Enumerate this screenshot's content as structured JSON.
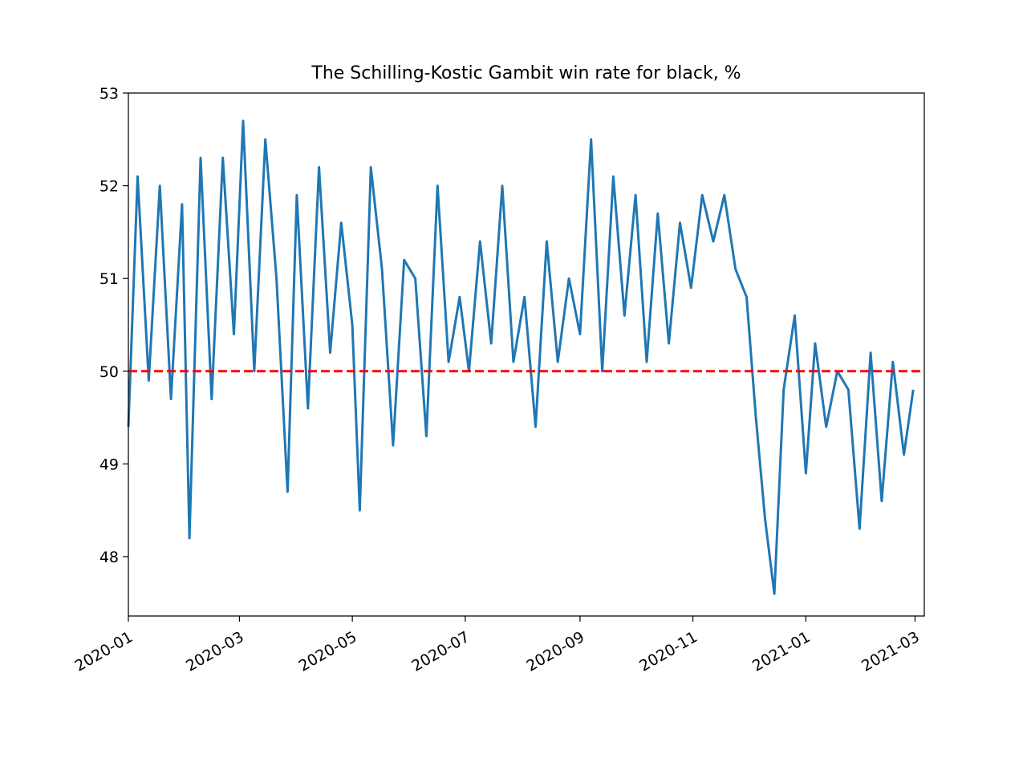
{
  "chart_data": {
    "type": "line",
    "title": "The Schilling-Kostic Gambit win rate for black, %",
    "xlabel": "",
    "ylabel": "",
    "x_range": [
      "2020-01-01",
      "2021-03-06"
    ],
    "ylim": [
      47.36,
      53.0
    ],
    "x_ticks": [
      "2020-01",
      "2020-03",
      "2020-05",
      "2020-07",
      "2020-09",
      "2020-11",
      "2021-01",
      "2021-03"
    ],
    "y_ticks": [
      "48",
      "49",
      "50",
      "51",
      "52",
      "53"
    ],
    "grid": false,
    "series": [
      {
        "color": "#1f77b4",
        "x": [
          "2020-01-01",
          "2020-01-06",
          "2020-01-12",
          "2020-01-18",
          "2020-01-24",
          "2020-01-30",
          "2020-02-03",
          "2020-02-09",
          "2020-02-15",
          "2020-02-21",
          "2020-02-27",
          "2020-03-03",
          "2020-03-09",
          "2020-03-15",
          "2020-03-21",
          "2020-03-27",
          "2020-04-01",
          "2020-04-07",
          "2020-04-13",
          "2020-04-19",
          "2020-04-25",
          "2020-05-01",
          "2020-05-05",
          "2020-05-11",
          "2020-05-17",
          "2020-05-23",
          "2020-05-29",
          "2020-06-04",
          "2020-06-10",
          "2020-06-16",
          "2020-06-22",
          "2020-06-28",
          "2020-07-03",
          "2020-07-09",
          "2020-07-15",
          "2020-07-21",
          "2020-07-27",
          "2020-08-02",
          "2020-08-08",
          "2020-08-14",
          "2020-08-20",
          "2020-08-26",
          "2020-09-01",
          "2020-09-07",
          "2020-09-13",
          "2020-09-19",
          "2020-09-25",
          "2020-10-01",
          "2020-10-07",
          "2020-10-13",
          "2020-10-19",
          "2020-10-25",
          "2020-10-31",
          "2020-11-06",
          "2020-11-12",
          "2020-11-18",
          "2020-11-24",
          "2020-11-30",
          "2020-12-05",
          "2020-12-10",
          "2020-12-15",
          "2020-12-20",
          "2020-12-26",
          "2021-01-01",
          "2021-01-06",
          "2021-01-12",
          "2021-01-18",
          "2021-01-24",
          "2021-01-30",
          "2021-02-05",
          "2021-02-11",
          "2021-02-17",
          "2021-02-23",
          "2021-02-28"
        ],
        "y": [
          49.4,
          52.1,
          49.9,
          52.0,
          49.7,
          51.8,
          48.2,
          52.3,
          49.7,
          52.3,
          50.4,
          52.7,
          50.0,
          52.5,
          51.0,
          48.7,
          51.9,
          49.6,
          52.2,
          50.2,
          51.6,
          50.5,
          48.5,
          52.2,
          51.1,
          49.2,
          51.2,
          51.0,
          49.3,
          52.0,
          50.1,
          50.8,
          50.0,
          51.4,
          50.3,
          52.0,
          50.1,
          50.8,
          49.4,
          51.4,
          50.1,
          51.0,
          50.4,
          52.5,
          50.0,
          52.1,
          50.6,
          51.9,
          50.1,
          51.7,
          50.3,
          51.6,
          50.9,
          51.9,
          51.4,
          51.9,
          51.1,
          50.8,
          49.5,
          48.4,
          47.6,
          49.8,
          50.6,
          48.9,
          50.3,
          49.4,
          50.0,
          49.8,
          48.3,
          50.2,
          48.6,
          50.1,
          49.1,
          49.8
        ]
      }
    ],
    "reference_line": {
      "y": 50,
      "color": "#ff0000",
      "style": "dashed"
    }
  }
}
